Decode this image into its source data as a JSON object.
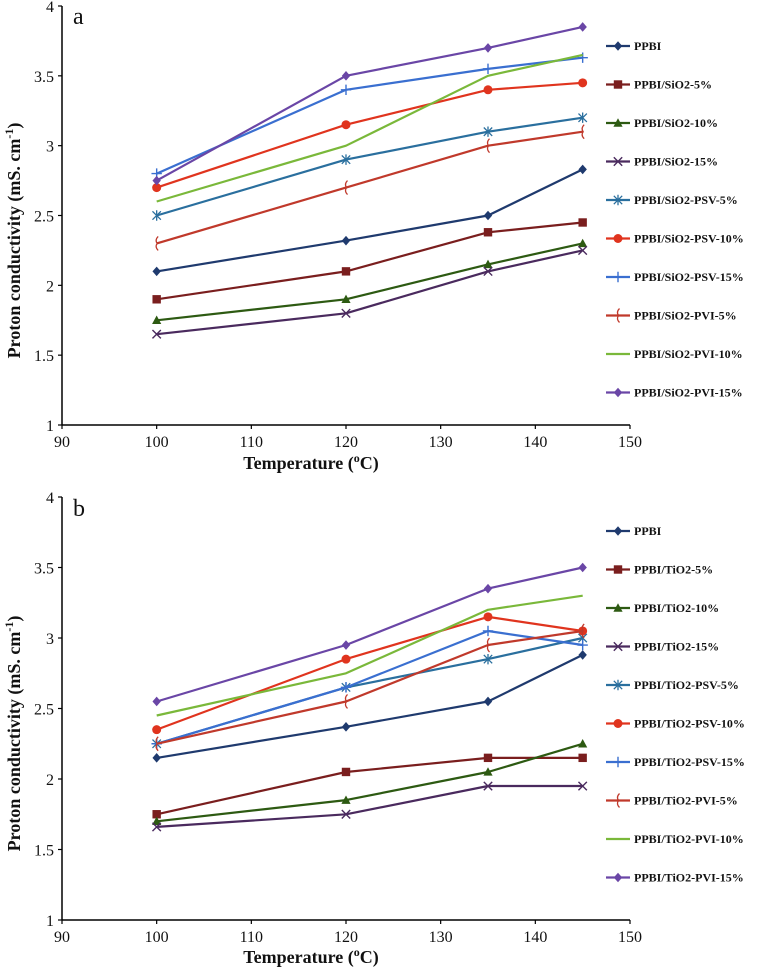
{
  "chart_data": [
    {
      "type": "line",
      "panel_label": "a",
      "xlabel": "Temperature (",
      "xlabel_sup": "o",
      "xlabel_tail": "C)",
      "ylabel": "Proton conductivity (mS. cm",
      "ylabel_sup": "-1",
      "ylabel_tail": ")",
      "xlim": [
        90,
        150
      ],
      "ylim": [
        1,
        4
      ],
      "x_ticks": [
        "90",
        "100",
        "110",
        "120",
        "130",
        "140",
        "150"
      ],
      "y_ticks": [
        "1",
        "1.5",
        "2",
        "2.5",
        "3",
        "3.5",
        "4"
      ],
      "legend_position": "right",
      "x": [
        100,
        120,
        135,
        145
      ],
      "series": [
        {
          "name": "PPBI",
          "marker": "diamond",
          "color": "#1f3a6e",
          "values": [
            2.1,
            2.32,
            2.5,
            2.83
          ]
        },
        {
          "name": "PPBI/SiO2-5%",
          "marker": "square",
          "color": "#7a1e1e",
          "values": [
            1.9,
            2.1,
            2.38,
            2.45
          ]
        },
        {
          "name": "PPBI/SiO2-10%",
          "marker": "triangle",
          "color": "#2d5a12",
          "values": [
            1.75,
            1.9,
            2.15,
            2.3
          ]
        },
        {
          "name": "PPBI/SiO2-15%",
          "marker": "x",
          "color": "#4a2a5e",
          "values": [
            1.65,
            1.8,
            2.1,
            2.25
          ]
        },
        {
          "name": "PPBI/SiO2-PSV-5%",
          "marker": "star",
          "color": "#2a6f9e",
          "values": [
            2.5,
            2.9,
            3.1,
            3.2
          ]
        },
        {
          "name": "PPBI/SiO2-PSV-10%",
          "marker": "circle",
          "color": "#e0341e",
          "values": [
            2.7,
            3.15,
            3.4,
            3.45
          ]
        },
        {
          "name": "PPBI/SiO2-PSV-15%",
          "marker": "plus",
          "color": "#3a6fd0",
          "values": [
            2.8,
            3.4,
            3.55,
            3.63
          ]
        },
        {
          "name": "PPBI/SiO2-PVI-5%",
          "marker": "brace",
          "color": "#c0392b",
          "values": [
            2.3,
            2.7,
            3.0,
            3.1
          ]
        },
        {
          "name": "PPBI/SiO2-PVI-10%",
          "marker": "none",
          "color": "#7ab83a",
          "values": [
            2.6,
            3.0,
            3.5,
            3.65
          ]
        },
        {
          "name": "PPBI/SiO2-PVI-15%",
          "marker": "diamond",
          "color": "#6a46a6",
          "values": [
            2.75,
            3.5,
            3.7,
            3.85
          ]
        }
      ]
    },
    {
      "type": "line",
      "panel_label": "b",
      "xlabel": "Temperature (",
      "xlabel_sup": "o",
      "xlabel_tail": "C)",
      "ylabel": "Proton conductivity (mS. cm",
      "ylabel_sup": "-1",
      "ylabel_tail": ")",
      "xlim": [
        90,
        150
      ],
      "ylim": [
        1,
        4
      ],
      "x_ticks": [
        "90",
        "100",
        "110",
        "120",
        "130",
        "140",
        "150"
      ],
      "y_ticks": [
        "1",
        "1.5",
        "2",
        "2.5",
        "3",
        "3.5",
        "4"
      ],
      "legend_position": "right",
      "x": [
        100,
        120,
        135,
        145
      ],
      "series": [
        {
          "name": "PPBI",
          "marker": "diamond",
          "color": "#1f3a6e",
          "values": [
            2.15,
            2.37,
            2.55,
            2.88
          ]
        },
        {
          "name": "PPBI/TiO2-5%",
          "marker": "square",
          "color": "#7a1e1e",
          "values": [
            1.75,
            2.05,
            2.15,
            2.15
          ]
        },
        {
          "name": "PPBI/TiO2-10%",
          "marker": "triangle",
          "color": "#2d5a12",
          "values": [
            1.7,
            1.85,
            2.05,
            2.25
          ]
        },
        {
          "name": "PPBI/TiO2-15%",
          "marker": "x",
          "color": "#4a2a5e",
          "values": [
            1.66,
            1.75,
            1.95,
            1.95
          ]
        },
        {
          "name": "PPBI/TiO2-PSV-5%",
          "marker": "star",
          "color": "#2a6f9e",
          "values": [
            2.25,
            2.65,
            2.85,
            3.0
          ]
        },
        {
          "name": "PPBI/TiO2-PSV-10%",
          "marker": "circle",
          "color": "#e0341e",
          "values": [
            2.35,
            2.85,
            3.15,
            3.05
          ]
        },
        {
          "name": "PPBI/TiO2-PSV-15%",
          "marker": "plus",
          "color": "#3a6fd0",
          "values": [
            2.25,
            2.65,
            3.05,
            2.95
          ]
        },
        {
          "name": "PPBI/TiO2-PVI-5%",
          "marker": "brace",
          "color": "#c0392b",
          "values": [
            2.25,
            2.55,
            2.95,
            3.05
          ]
        },
        {
          "name": "PPBI/TiO2-PVI-10%",
          "marker": "none",
          "color": "#7ab83a",
          "values": [
            2.45,
            2.75,
            3.2,
            3.3
          ]
        },
        {
          "name": "PPBI/TiO2-PVI-15%",
          "marker": "diamond",
          "color": "#6a46a6",
          "values": [
            2.55,
            2.95,
            3.35,
            3.5
          ]
        }
      ]
    }
  ]
}
